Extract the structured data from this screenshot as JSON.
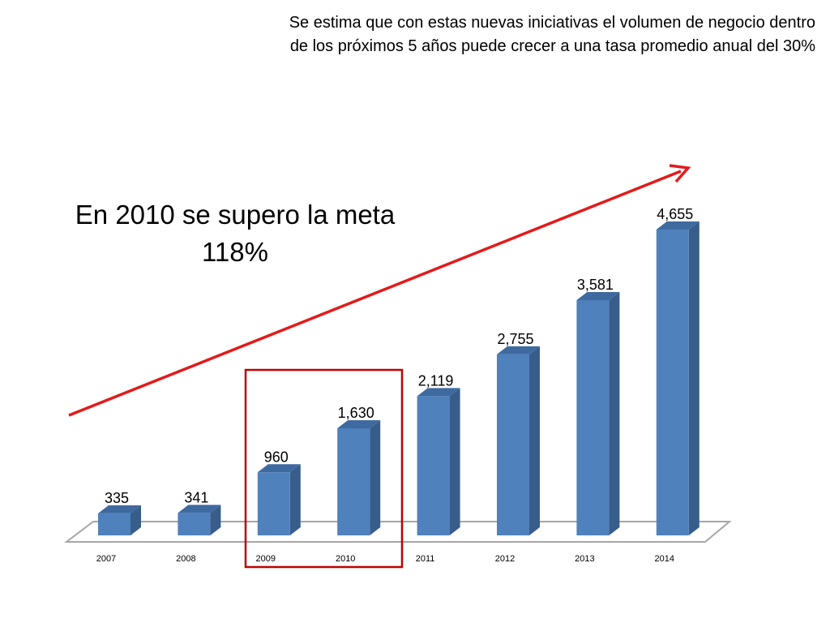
{
  "chart_data": {
    "type": "bar",
    "title": "Se estima que con estas nuevas iniciativas el volumen de negocio dentro de los próximos 5 años puede crecer a una tasa promedio anual del 30%",
    "title_lines": [
      "Se estima que con estas nuevas iniciativas el volumen de negocio dentro",
      "de los próximos 5 años puede crecer a una tasa promedio anual del 30%"
    ],
    "annotation_lines": [
      "En 2010 se supero la meta",
      "118%"
    ],
    "categories": [
      "2007",
      "2008",
      "2009",
      "2010",
      "2011",
      "2012",
      "2013",
      "2014"
    ],
    "values": [
      335,
      341,
      960,
      1630,
      2119,
      2755,
      3581,
      4655
    ],
    "data_labels": [
      "335",
      "341",
      "960",
      "1,630",
      "2,119",
      "2,755",
      "3,581",
      "4,655"
    ],
    "highlighted_categories": [
      "2009",
      "2010"
    ],
    "xlabel": "",
    "ylabel": "",
    "ylim": [
      0,
      4655
    ],
    "grid": false,
    "legend": "none",
    "colors": {
      "bar_front": "#4f81bd",
      "bar_side": "#385d8a",
      "bar_top": "#3f6aa0",
      "highlight_box": "#c00000",
      "trend_arrow": "#e41a1a",
      "floor": "#a6a6a6"
    }
  }
}
